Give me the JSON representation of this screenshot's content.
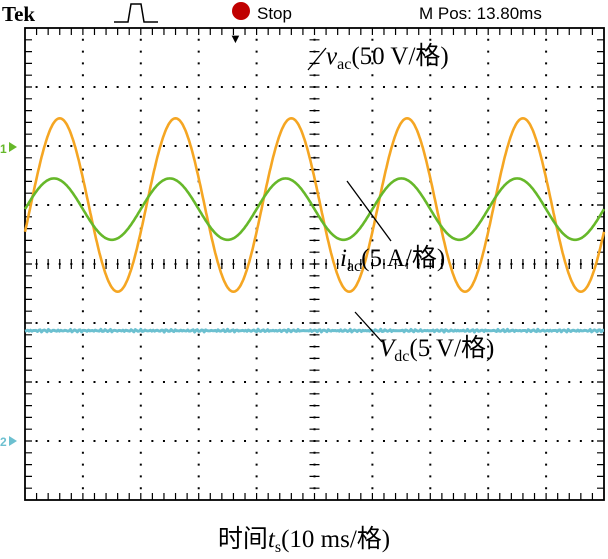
{
  "scope": {
    "brand": "Tek",
    "status": "Stop",
    "mpos": "M Pos: 13.80ms",
    "ch1_marker": "1",
    "ch2_marker": "2",
    "trigger_glyph": "▼"
  },
  "colors": {
    "vac": "#f5a623",
    "iac": "#66b82a",
    "vdc": "#6cc0d0",
    "stop": "#c00000",
    "grid": "#000000"
  },
  "chart_data": {
    "type": "line",
    "xlabel_prefix": "时间",
    "xlabel_var": "t",
    "xlabel_sub": "s",
    "xlabel_unit": "(10 ms/格)",
    "x_divisions": 10,
    "y_divisions": 8,
    "xlim": [
      0,
      100
    ],
    "ylim": [
      -4,
      4
    ],
    "x_unit": "ms",
    "y_unit": "div",
    "series": [
      {
        "key": "vac",
        "label_var": "v",
        "label_sub": "ac",
        "label_unit": "(50 V/格)",
        "waveform": "sine",
        "period_ms": 20,
        "amplitude_div": 1.47,
        "offset_div": 1.0,
        "peak_time_ms": 6.0,
        "scale": "50 V/div"
      },
      {
        "key": "iac",
        "label_var": "i",
        "label_sub": "ac",
        "label_unit": "(5 A/格)",
        "waveform": "sine",
        "period_ms": 20,
        "amplitude_div": 0.52,
        "offset_div": 0.93,
        "peak_time_ms": 5.0,
        "scale": "5 A/div"
      },
      {
        "key": "vdc",
        "label_var": "V",
        "label_sub": "dc",
        "label_unit": "(5 V/格)",
        "waveform": "dc",
        "level_div": -1.13,
        "scale": "5 V/div"
      }
    ]
  }
}
